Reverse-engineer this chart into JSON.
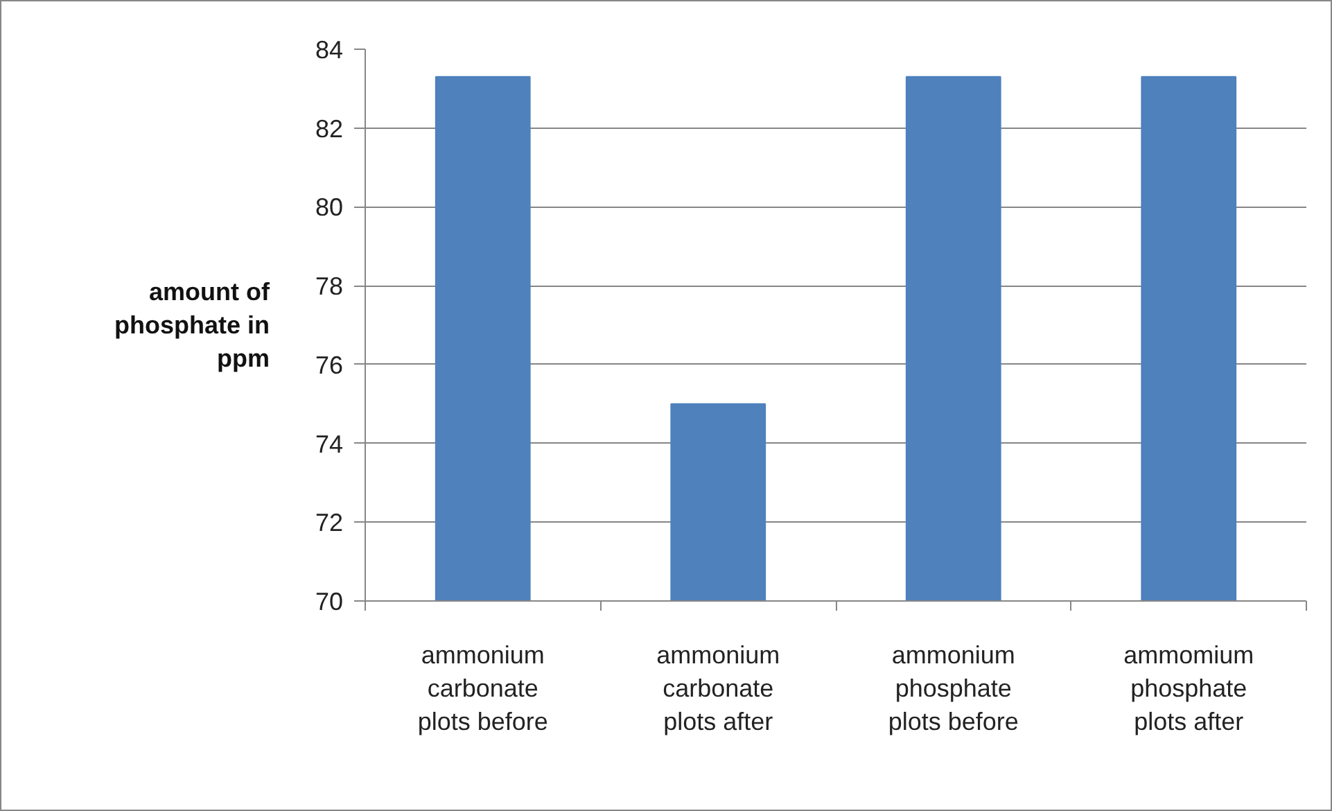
{
  "chart_data": {
    "type": "bar",
    "ylabel": "amount of phosphate in ppm",
    "categories": [
      "ammonium carbonate plots before",
      "ammonium carbonate plots after",
      "ammonium phosphate plots before",
      "ammomium phosphate plots after"
    ],
    "values": [
      83.3,
      75,
      83.3,
      83.3
    ],
    "color": "#4f81bd",
    "ylim": [
      70,
      84
    ],
    "yticks": [
      70,
      72,
      74,
      76,
      78,
      80,
      82,
      84
    ],
    "grid": "y"
  }
}
